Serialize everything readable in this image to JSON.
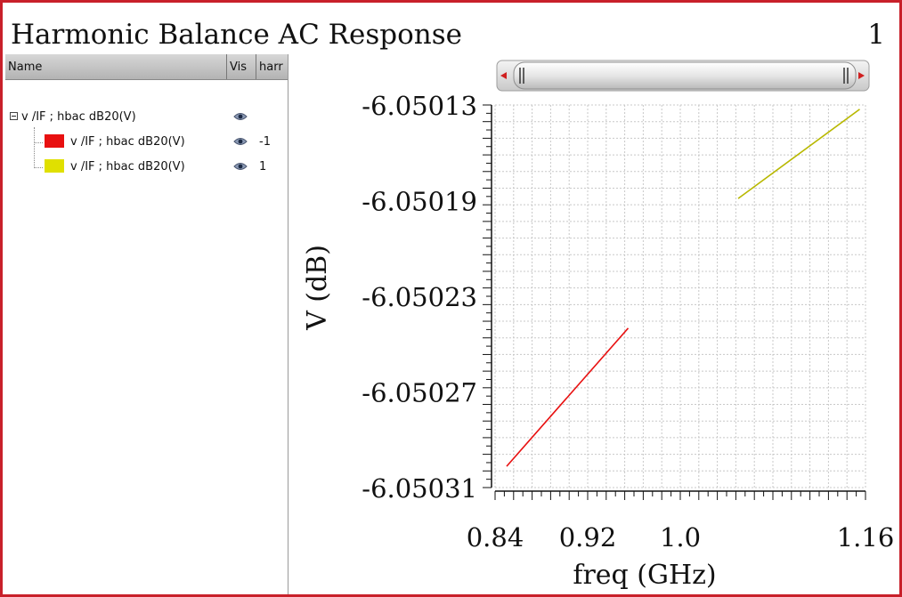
{
  "window": {
    "title": "Harmonic Balance AC Response",
    "subwindow_number": "1"
  },
  "tree": {
    "columns": [
      "Name",
      "Vis",
      "harr"
    ],
    "root": {
      "label": "v /IF ; hbac dB20(V)"
    },
    "children": [
      {
        "label": "v /IF ; hbac dB20(V)",
        "color": "#e81010",
        "harmonic": "-1"
      },
      {
        "label": "v /IF ; hbac dB20(V)",
        "color": "#e0e000",
        "harmonic": "1"
      }
    ]
  },
  "chart_data": {
    "type": "line",
    "xlabel": "freq (GHz)",
    "ylabel": "V (dB)",
    "xlim": [
      0.84,
      1.16
    ],
    "ylim": [
      -6.05031,
      -6.05013
    ],
    "x_ticks": [
      "0.84",
      "0.92",
      "1.0",
      "1.16"
    ],
    "y_ticks": [
      "-6.05013",
      "-6.05019",
      "-6.05023",
      "-6.05027",
      "-6.05031"
    ],
    "grid": true,
    "series": [
      {
        "name": "-1",
        "color": "#e81010",
        "x": [
          0.85,
          0.955
        ],
        "y": [
          -6.0503,
          -6.050235
        ]
      },
      {
        "name": "1",
        "color": "#b8b800",
        "x": [
          1.05,
          1.155
        ],
        "y": [
          -6.050174,
          -6.050132
        ]
      }
    ]
  }
}
